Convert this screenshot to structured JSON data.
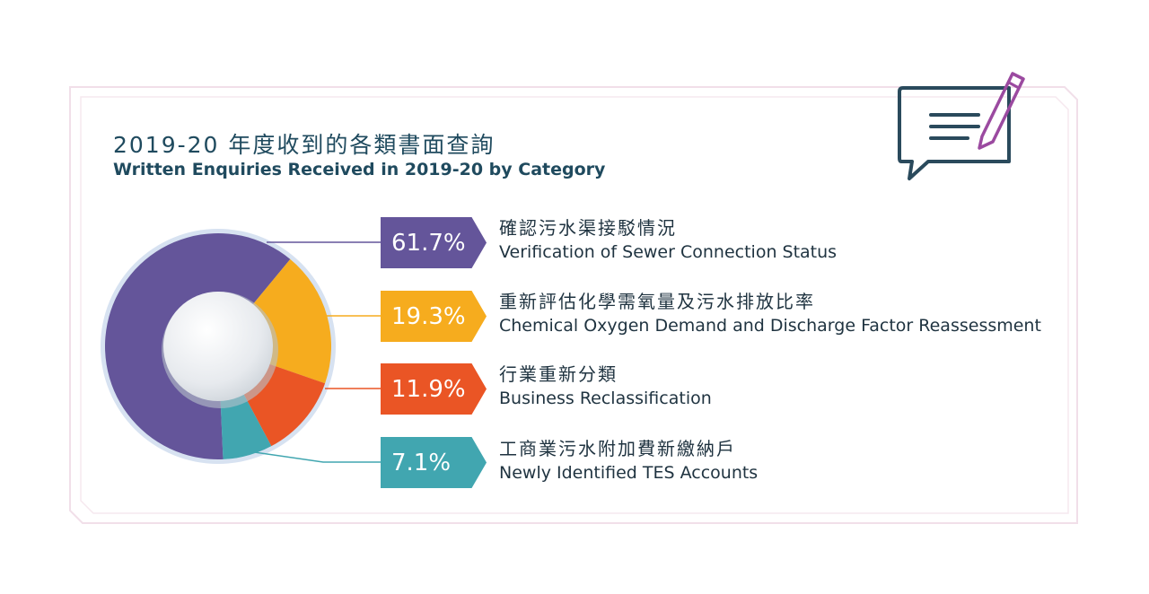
{
  "title_zh": "2019-20 年度收到的各類書面查詢",
  "title_en": "Written Enquiries Received in 2019-20 by Category",
  "icon": "document-edit-icon",
  "chart_data": {
    "type": "pie",
    "title": "Written Enquiries Received in 2019-20 by Category",
    "donut": true,
    "slices": [
      {
        "value": 61.7,
        "label": "61.7%",
        "name_zh": "確認污水渠接駁情況",
        "name_en": "Verification of Sewer Connection Status",
        "color": "#64559a"
      },
      {
        "value": 19.3,
        "label": "19.3%",
        "name_zh": "重新評估化學需氧量及污水排放比率",
        "name_en": "Chemical Oxygen Demand and Discharge Factor Reassessment",
        "color": "#f6ac1e"
      },
      {
        "value": 11.9,
        "label": "11.9%",
        "name_zh": "行業重新分類",
        "name_en": "Business Reclassification",
        "color": "#ea5525"
      },
      {
        "value": 7.1,
        "label": "7.1%",
        "name_zh": "工商業污水附加費新繳納戶",
        "name_en": "Newly Identified TES Accounts",
        "color": "#41a6b0"
      }
    ]
  }
}
